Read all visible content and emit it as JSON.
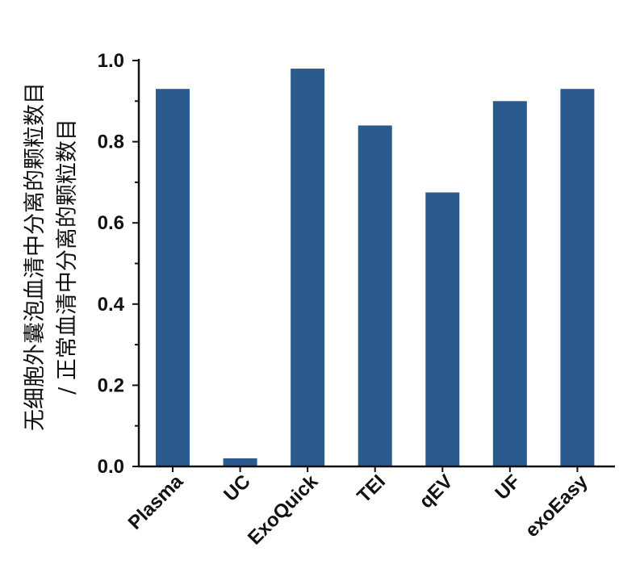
{
  "chart_data": {
    "type": "bar",
    "categories": [
      "Plasma",
      "UC",
      "ExoQuick",
      "TEI",
      "qEV",
      "UF",
      "exoEasy"
    ],
    "values": [
      0.93,
      0.02,
      0.98,
      0.84,
      0.675,
      0.9,
      0.93
    ],
    "ylabel_lines": [
      "无细胞外囊泡血清中分离的颗粒数目",
      "/ 正常血清中分离的颗粒数目"
    ],
    "ylim": [
      0.0,
      1.0
    ],
    "yticks": [
      "0.0",
      "0.2",
      "0.4",
      "0.6",
      "0.8",
      "1.0"
    ],
    "bar_color": "#2b5a8e",
    "grid": false,
    "legend": "none"
  }
}
